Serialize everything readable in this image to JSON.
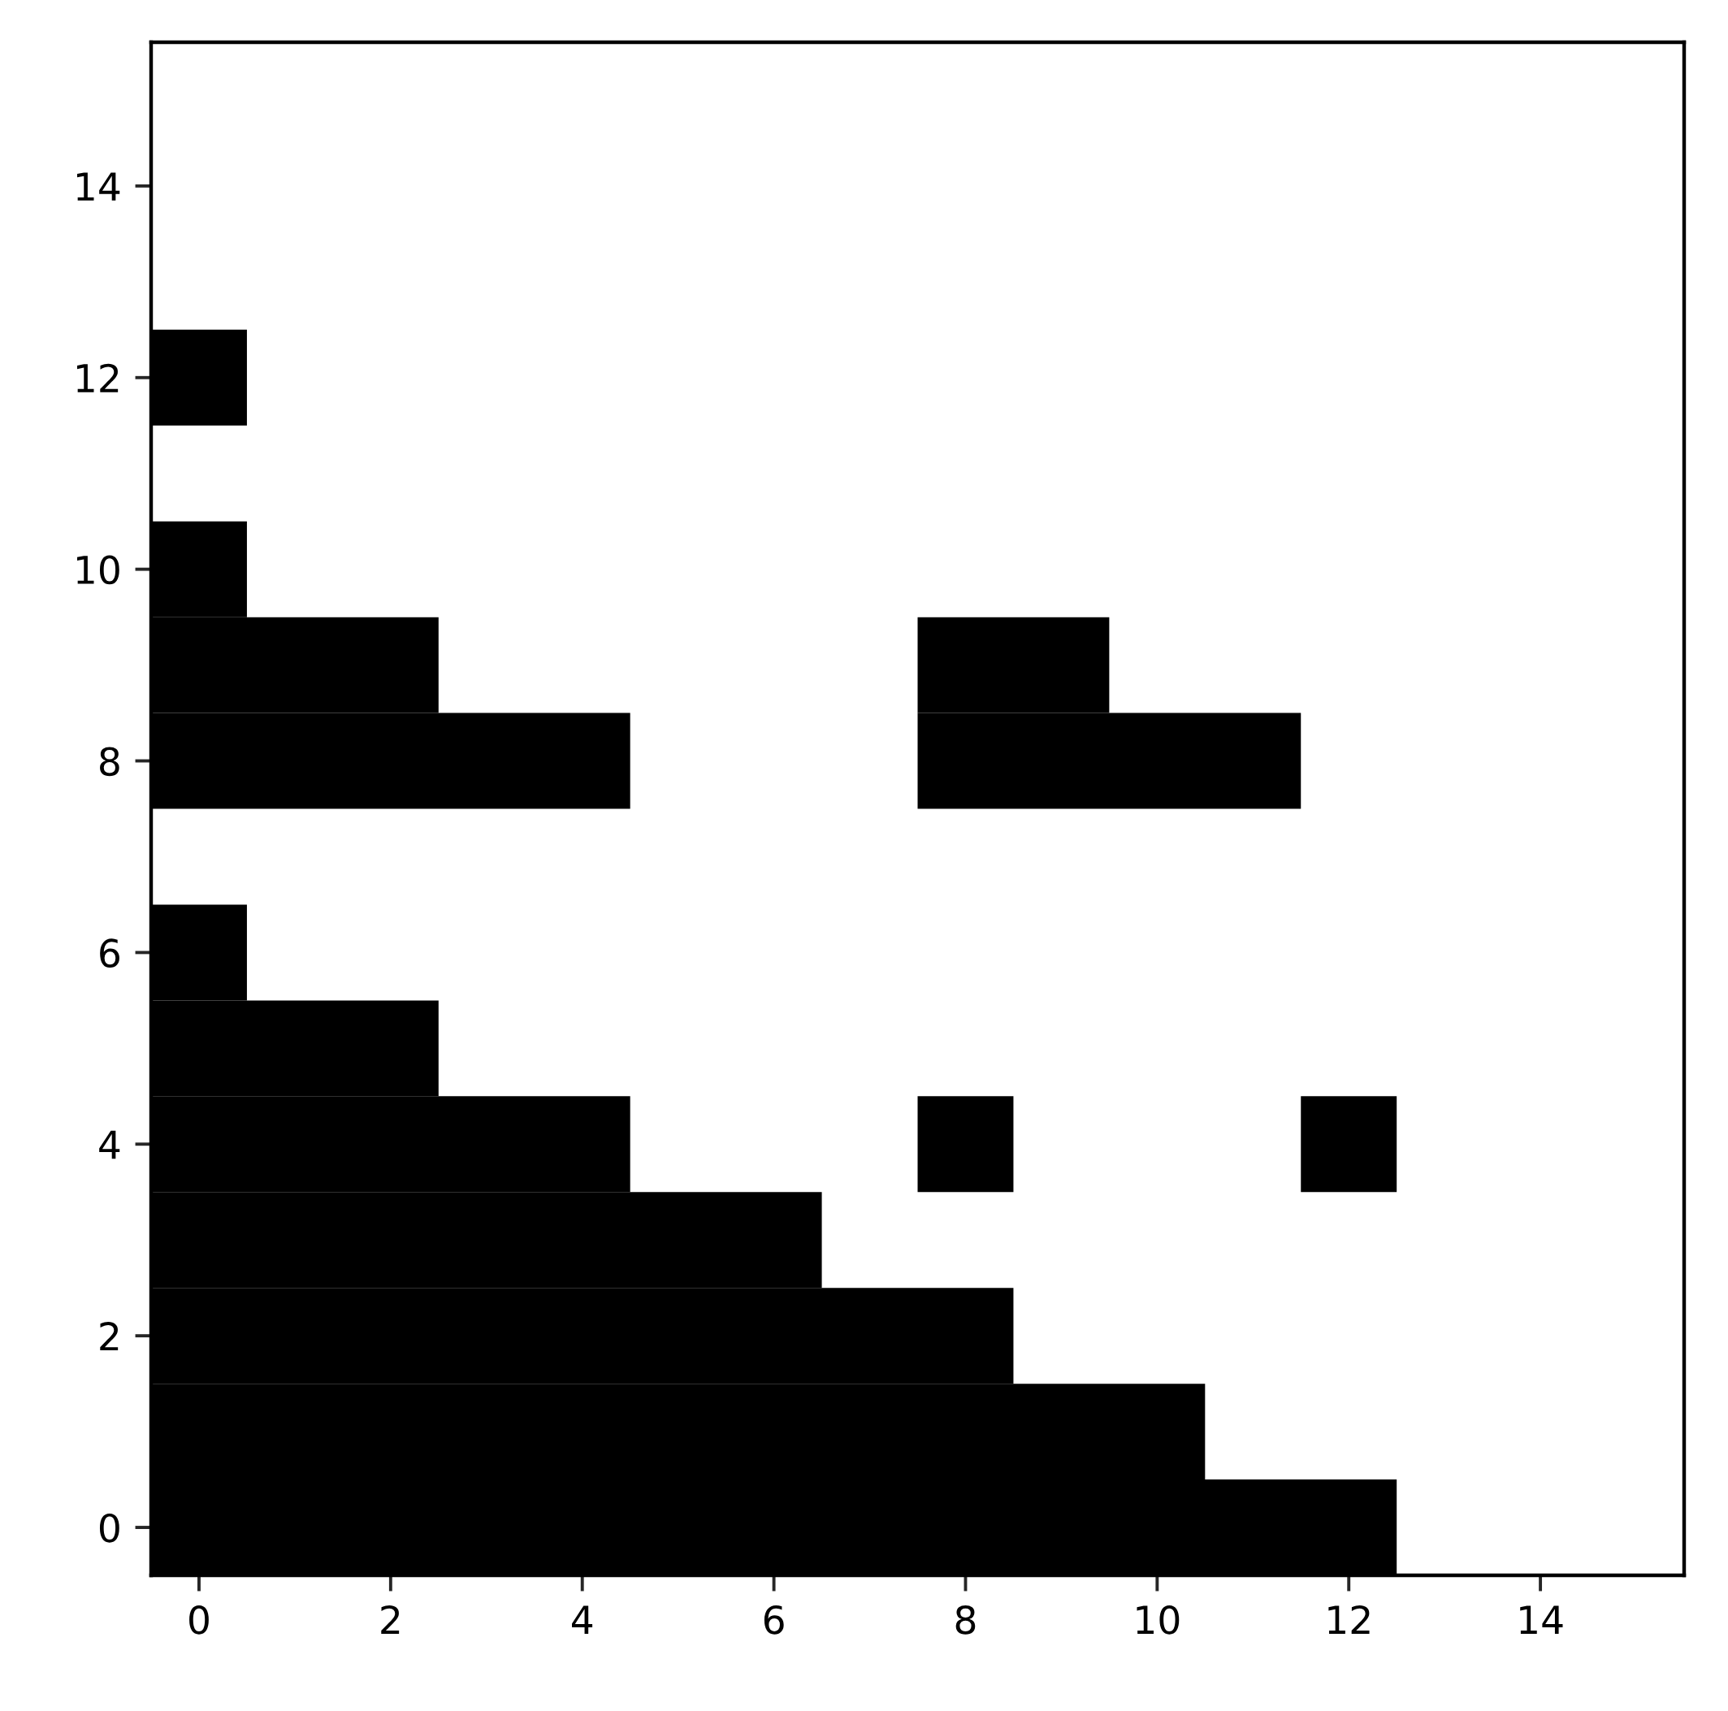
{
  "chart_data": {
    "type": "bar",
    "orientation": "horizontal",
    "categories": [
      null,
      "14",
      null,
      "12",
      null,
      "10",
      null,
      "8",
      null,
      "6",
      null,
      "4",
      null,
      "2",
      null,
      "0"
    ],
    "xlim": [
      -0.5,
      15.5
    ],
    "xticks": [
      0,
      2,
      4,
      6,
      8,
      10,
      12,
      14
    ],
    "series": [
      {
        "color": "#000000",
        "base": [
          null,
          null,
          null,
          -0.5,
          null,
          -0.5,
          -0.5,
          -0.5,
          null,
          -0.5,
          -0.5,
          -0.5,
          -0.5,
          -0.5,
          -0.5,
          -0.5
        ],
        "values": [
          null,
          null,
          null,
          1,
          null,
          1,
          3,
          5,
          null,
          1,
          3,
          5,
          7,
          9,
          11,
          13
        ]
      },
      {
        "color": "#000000",
        "base": [
          null,
          null,
          null,
          null,
          null,
          null,
          7.5,
          7.5,
          null,
          null,
          null,
          7.5,
          null,
          null,
          null,
          null
        ],
        "values": [
          null,
          null,
          null,
          null,
          null,
          null,
          2,
          4,
          null,
          null,
          null,
          1,
          null,
          null,
          null,
          null
        ]
      },
      {
        "color": "#000000",
        "base": [
          null,
          null,
          null,
          null,
          null,
          null,
          null,
          null,
          null,
          null,
          null,
          11.5,
          null,
          null,
          null,
          null
        ],
        "values": [
          null,
          null,
          null,
          null,
          null,
          null,
          null,
          null,
          null,
          null,
          null,
          1,
          null,
          null,
          null,
          null
        ]
      }
    ]
  }
}
